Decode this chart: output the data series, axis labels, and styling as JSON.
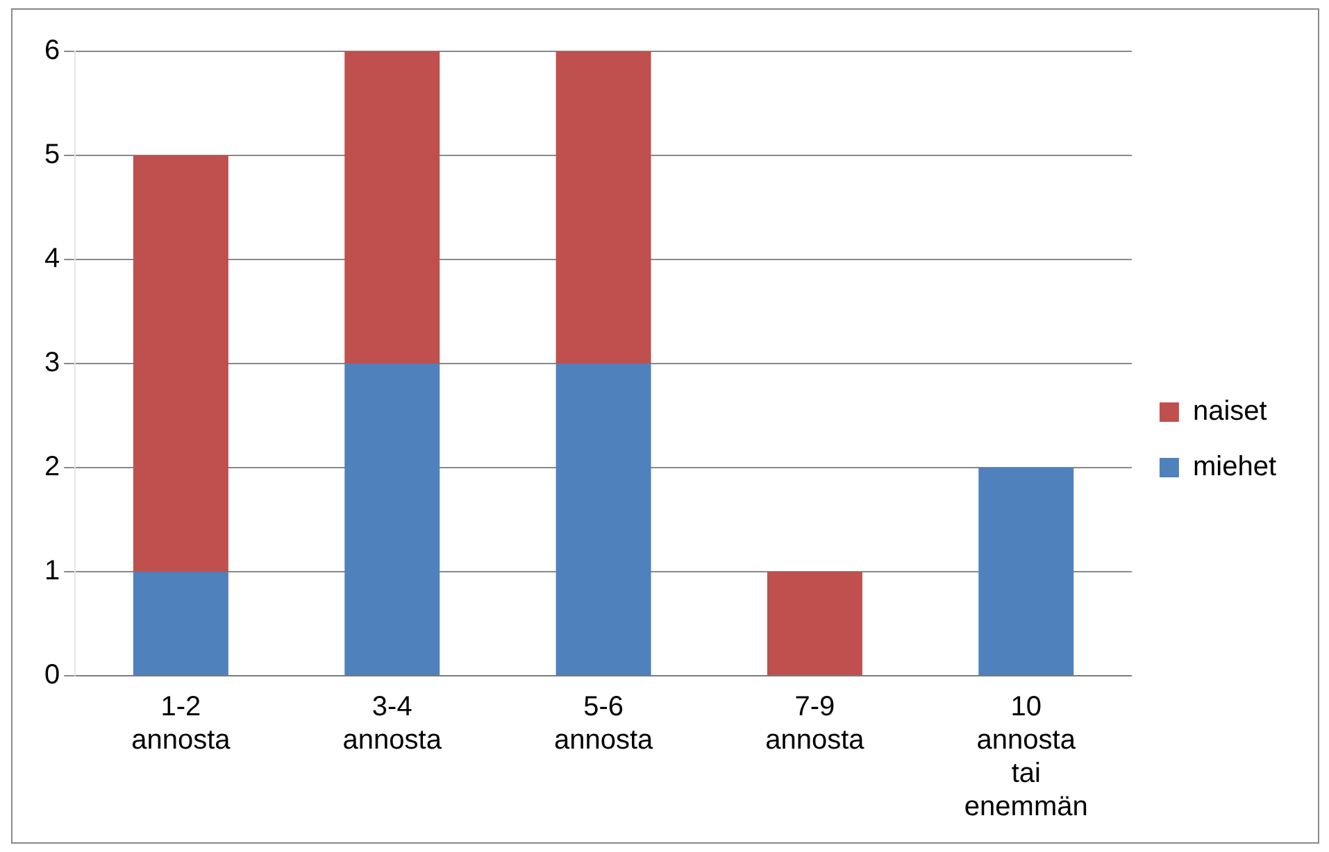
{
  "chart_data": {
    "type": "bar",
    "stacked": true,
    "categories": [
      "1-2 annosta",
      "3-4 annosta",
      "5-6 annosta",
      "7-9 annosta",
      "10 annosta tai enemmän"
    ],
    "series": [
      {
        "name": "miehet",
        "color": "#4f81bd",
        "values": [
          1,
          3,
          3,
          0,
          2
        ]
      },
      {
        "name": "naiset",
        "color": "#c0504d",
        "values": [
          4,
          3,
          3,
          1,
          0
        ]
      }
    ],
    "ylim": [
      0,
      6
    ],
    "yticks": [
      0,
      1,
      2,
      3,
      4,
      5,
      6
    ],
    "grid": "y",
    "legend": "right"
  }
}
